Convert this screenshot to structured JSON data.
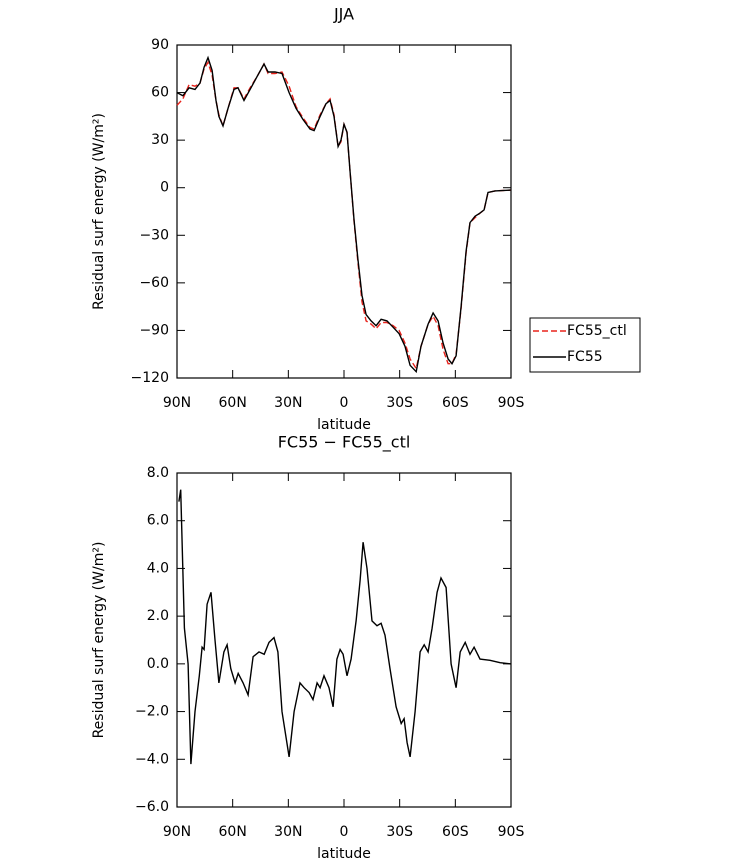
{
  "chart_data": [
    {
      "type": "line",
      "title": "JJA",
      "xlabel": "latitude",
      "ylabel": "Residual surf energy (W/m²)",
      "x": [
        90,
        86.8,
        83.5,
        80.3,
        77.6,
        75.4,
        73.3,
        71.1,
        69,
        67.4,
        65.2,
        62.5,
        59.3,
        57.1,
        53.9,
        50.6,
        46.9,
        43.1,
        40.9,
        37.2,
        33.4,
        29.6,
        25.8,
        22.1,
        18.3,
        16.1,
        12.9,
        9.7,
        7.5,
        5.4,
        3.2,
        1.6,
        0,
        -1.6,
        -3.3,
        -5.4,
        -7.5,
        -9.7,
        -11.9,
        -14.6,
        -17.3,
        -20,
        -23.2,
        -26.5,
        -29.7,
        -32.9,
        -35.6,
        -38.9,
        -41.5,
        -45.3,
        -48,
        -50.7,
        -53.4,
        -56.1,
        -58.2,
        -60.4,
        -63.1,
        -65.8,
        -67.9,
        -70.6,
        -73.3,
        -75.5,
        -77.6,
        -81.4,
        -90
      ],
      "series": [
        {
          "name": "FC55_ctl",
          "color": "#e8231c",
          "linestyle": "dashed",
          "values": [
            52,
            56,
            65,
            64,
            66,
            75,
            79,
            71,
            55,
            46,
            39,
            50,
            63,
            63,
            56,
            63,
            70,
            78,
            72,
            72,
            73,
            64,
            51,
            44,
            38,
            37,
            46,
            53,
            56,
            46,
            26,
            29,
            40,
            35,
            10,
            -21,
            -47,
            -72,
            -84,
            -86,
            -89,
            -85,
            -85,
            -87,
            -90,
            -98,
            -108,
            -114,
            -100,
            -86,
            -81,
            -87,
            -102,
            -111,
            -111,
            -105,
            -76,
            -41,
            -22,
            -19,
            -16,
            -14,
            -3,
            -2,
            -1.5
          ]
        },
        {
          "name": "FC55",
          "color": "#000000",
          "linestyle": "solid",
          "values": [
            60,
            58,
            63,
            62,
            66,
            76,
            82,
            74,
            55,
            45,
            39,
            50,
            62,
            63,
            55,
            62,
            70,
            78,
            73,
            73,
            72,
            60,
            50,
            43,
            37,
            36,
            45,
            53,
            55,
            45,
            26,
            30,
            40,
            35,
            10,
            -20,
            -45,
            -68,
            -80,
            -84,
            -87,
            -83,
            -84,
            -88,
            -92,
            -100,
            -112,
            -116,
            -100,
            -86,
            -79,
            -84,
            -98,
            -108,
            -111,
            -106,
            -75,
            -40,
            -22,
            -18,
            -16,
            -14,
            -3,
            -2,
            -1.5
          ]
        }
      ],
      "xlim": [
        90,
        -90
      ],
      "xticks": [
        {
          "value": 90,
          "label": "90N"
        },
        {
          "value": 60,
          "label": "60N"
        },
        {
          "value": 30,
          "label": "30N"
        },
        0,
        {
          "value": -30,
          "label": "30S"
        },
        {
          "value": -60,
          "label": "60S"
        },
        {
          "value": -90,
          "label": "90S"
        }
      ],
      "ylim": [
        -120,
        90
      ],
      "yticks": [
        {
          "value": -120,
          "label": "−120"
        },
        {
          "value": -90,
          "label": "−90"
        },
        {
          "value": -60,
          "label": "−60"
        },
        {
          "value": -30,
          "label": "−30"
        },
        0,
        30,
        60,
        90
      ],
      "legend": "outside-right"
    },
    {
      "type": "line",
      "title": "FC55 − FC55_ctl",
      "xlabel": "latitude",
      "ylabel": "Residual surf energy (W/m²)",
      "x": [
        89,
        88,
        86,
        84,
        82.5,
        80.3,
        78,
        76.5,
        75.4,
        73.8,
        71.7,
        69.5,
        67.4,
        64.7,
        63,
        61,
        58.7,
        57,
        54.4,
        51.7,
        49,
        45.8,
        43,
        40.4,
        37.7,
        35.6,
        33.4,
        29.6,
        26.9,
        23.7,
        21.5,
        18.8,
        16.7,
        14.5,
        12.9,
        10.8,
        8.1,
        5.9,
        3.8,
        2.1,
        0.5,
        -1.6,
        -3.8,
        -6.5,
        -8.7,
        -10.3,
        -12.4,
        -15.1,
        -17.8,
        -20,
        -22.1,
        -24.8,
        -28.1,
        -30.8,
        -32.4,
        -34,
        -35.6,
        -38.3,
        -41,
        -43.2,
        -45.3,
        -47.5,
        -50.2,
        -52.3,
        -55,
        -57.7,
        -60.4,
        -62.6,
        -65.3,
        -67.9,
        -70.1,
        -73.3,
        -78.7,
        -84.1,
        -90
      ],
      "values": [
        6.8,
        7.3,
        1.5,
        0,
        -4.2,
        -2,
        -0.5,
        0.7,
        0.6,
        2.5,
        3.0,
        1,
        -0.8,
        0.5,
        0.8,
        -0.2,
        -0.8,
        -0.4,
        -0.8,
        -1.3,
        0.3,
        0.5,
        0.4,
        0.9,
        1.1,
        0.5,
        -2.0,
        -3.9,
        -2.0,
        -0.8,
        -1.0,
        -1.2,
        -1.5,
        -0.8,
        -1.0,
        -0.5,
        -1.0,
        -1.8,
        0.2,
        0.6,
        0.4,
        -0.5,
        0.2,
        1.8,
        3.5,
        5.1,
        4,
        1.8,
        1.6,
        1.7,
        1.2,
        -0.2,
        -1.8,
        -2.5,
        -2.3,
        -3.3,
        -3.9,
        -2.0,
        0.5,
        0.8,
        0.5,
        1.5,
        3.0,
        3.6,
        3.2,
        0,
        -1.0,
        0.5,
        0.9,
        0.4,
        0.7,
        0.2,
        0.15,
        0.05,
        0
      ],
      "color": "#000000",
      "xlim": [
        90,
        -90
      ],
      "xticks": [
        {
          "value": 90,
          "label": "90N"
        },
        {
          "value": 60,
          "label": "60N"
        },
        {
          "value": 30,
          "label": "30N"
        },
        0,
        {
          "value": -30,
          "label": "30S"
        },
        {
          "value": -60,
          "label": "60S"
        },
        {
          "value": -90,
          "label": "90S"
        }
      ],
      "ylim": [
        -6,
        8
      ],
      "yticks": [
        {
          "value": -6,
          "label": "−6.0"
        },
        {
          "value": -4,
          "label": "−4.0"
        },
        {
          "value": -2,
          "label": "−2.0"
        },
        {
          "value": 0,
          "label": "0.0"
        },
        {
          "value": 2,
          "label": "2.0"
        },
        {
          "value": 4,
          "label": "4.0"
        },
        {
          "value": 6,
          "label": "6.0"
        },
        {
          "value": 8,
          "label": "8.0"
        }
      ]
    }
  ]
}
